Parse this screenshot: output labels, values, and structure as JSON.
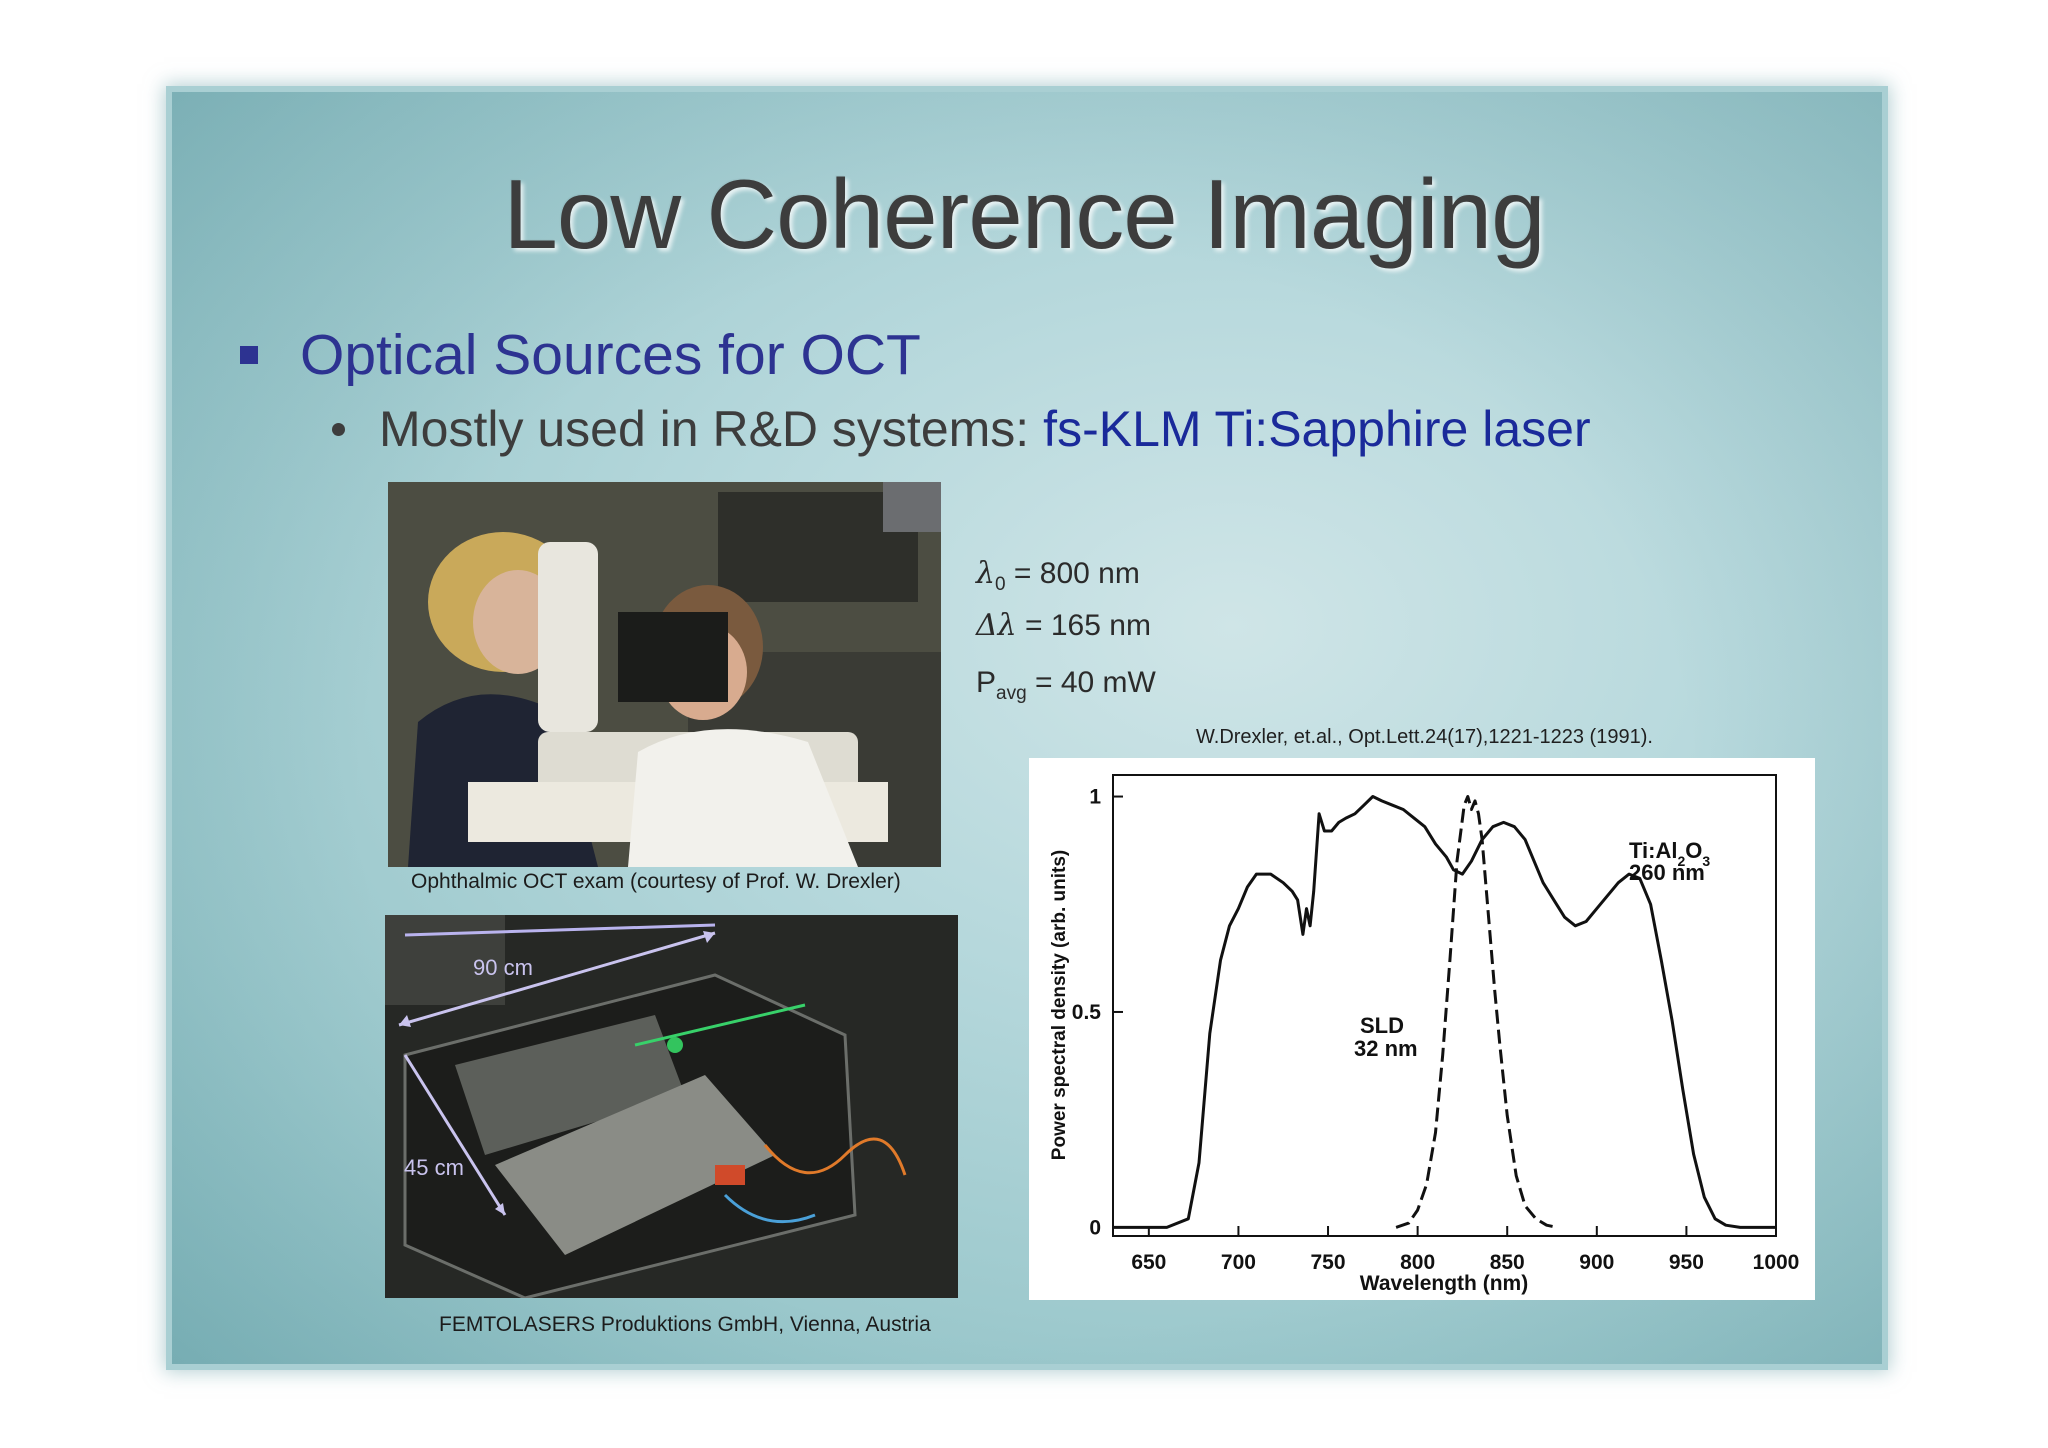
{
  "slide": {
    "title": "Low Coherence Imaging",
    "bullet1": "Optical Sources for OCT",
    "bullet2_prefix": "Mostly used in R&D systems:",
    "bullet2_highlight": "fs-KLM Ti:Sapphire laser"
  },
  "photos": {
    "photo1_caption": "Ophthalmic OCT exam  (courtesy of Prof. W. Drexler)",
    "photo2_caption": "FEMTOLASERS Produktions GmbH, Vienna, Austria",
    "dim_90": "90 cm",
    "dim_45": "45 cm"
  },
  "params": {
    "lambda0_sym": "λ",
    "lambda0_sub": "0",
    "lambda0_val": " = 800 nm",
    "dlambda_sym": "Δλ",
    "dlambda_val": " = 165 nm",
    "pavg_sym": "P",
    "pavg_sub": "avg",
    "pavg_val": " = 40 mW"
  },
  "reference": "W.Drexler, et.al., Opt.Lett.24(17),1221-1223 (1991).",
  "chart_data": {
    "type": "line",
    "xlabel": "Wavelength (nm)",
    "ylabel": "Power spectral density (arb. units)",
    "xlim": [
      630,
      1000
    ],
    "ylim": [
      -0.02,
      1.05
    ],
    "xticks": [
      "650",
      "700",
      "750",
      "800",
      "850",
      "900",
      "950",
      "1000"
    ],
    "yticks": [
      "0",
      "0.5",
      "1"
    ],
    "xtick_values": [
      650,
      700,
      750,
      800,
      850,
      900,
      950,
      1000
    ],
    "ytick_values": [
      0,
      0.5,
      1
    ],
    "annotations": [
      {
        "text": "Ti:Al",
        "sub": "2",
        "text2": "O",
        "sub2": "3",
        "line2": "260 nm"
      },
      {
        "text": "SLD",
        "line2": "32 nm"
      }
    ],
    "series": [
      {
        "style": "solid",
        "x": [
          630,
          660,
          672,
          678,
          684,
          690,
          695,
          700,
          705,
          710,
          718,
          725,
          730,
          733,
          736,
          738,
          740,
          742,
          745,
          748,
          752,
          756,
          760,
          765,
          770,
          775,
          780,
          786,
          792,
          798,
          804,
          810,
          816,
          820,
          825,
          830,
          836,
          842,
          848,
          854,
          860,
          865,
          870,
          876,
          882,
          888,
          894,
          900,
          906,
          912,
          918,
          924,
          930,
          936,
          942,
          948,
          954,
          960,
          966,
          972,
          980,
          990,
          1000
        ],
        "y": [
          0.0,
          0.0,
          0.02,
          0.15,
          0.45,
          0.62,
          0.7,
          0.74,
          0.79,
          0.82,
          0.82,
          0.8,
          0.78,
          0.76,
          0.68,
          0.74,
          0.7,
          0.78,
          0.96,
          0.92,
          0.92,
          0.94,
          0.95,
          0.96,
          0.98,
          1.0,
          0.99,
          0.98,
          0.97,
          0.95,
          0.93,
          0.89,
          0.86,
          0.83,
          0.82,
          0.85,
          0.9,
          0.93,
          0.94,
          0.93,
          0.9,
          0.85,
          0.8,
          0.76,
          0.72,
          0.7,
          0.71,
          0.74,
          0.77,
          0.8,
          0.82,
          0.81,
          0.75,
          0.62,
          0.48,
          0.32,
          0.17,
          0.07,
          0.02,
          0.005,
          0.0,
          0.0,
          0.0
        ]
      },
      {
        "style": "dashed",
        "x": [
          788,
          795,
          800,
          805,
          810,
          814,
          818,
          822,
          826,
          828,
          830,
          832,
          834,
          836,
          838,
          840,
          843,
          846,
          850,
          855,
          860,
          866,
          872,
          878
        ],
        "y": [
          0.0,
          0.01,
          0.04,
          0.1,
          0.22,
          0.4,
          0.62,
          0.85,
          0.98,
          1.0,
          0.97,
          0.99,
          0.96,
          0.9,
          0.8,
          0.7,
          0.55,
          0.42,
          0.26,
          0.12,
          0.05,
          0.02,
          0.005,
          0.0
        ]
      }
    ]
  }
}
